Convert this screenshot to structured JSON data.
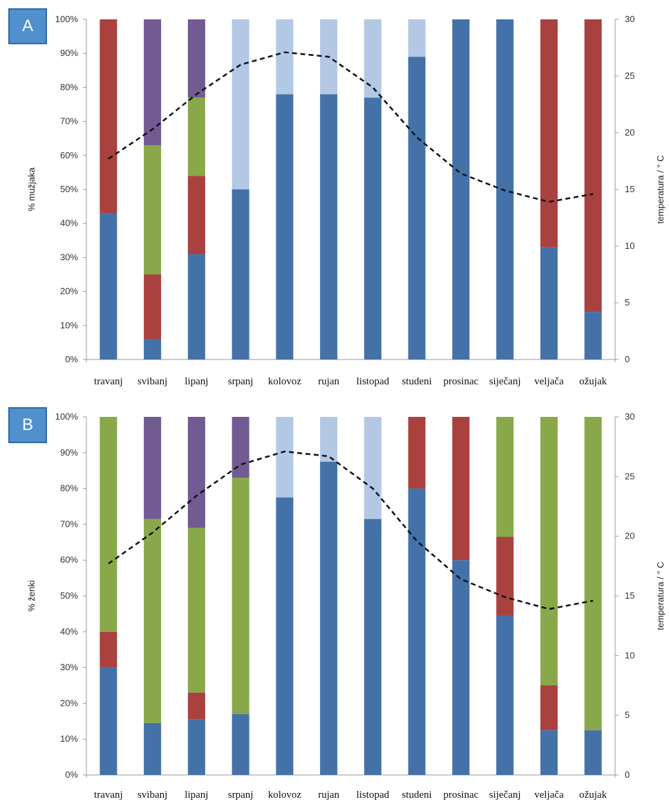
{
  "colors": {
    "blue": "#4472a8",
    "red": "#a9413f",
    "green": "#88a84a",
    "purple": "#725a93",
    "lightblue": "#b3c8e4",
    "line": "#111111",
    "badge": "#4f90cd"
  },
  "chart_data": [
    {
      "panel": "A",
      "type": "bar",
      "stacked": true,
      "categories": [
        "travanj",
        "svibanj",
        "lipanj",
        "srpanj",
        "kolovoz",
        "rujan",
        "listopad",
        "studeni",
        "prosinac",
        "siječanj",
        "veljača",
        "ožujak"
      ],
      "ylabel": "% mužjaka",
      "y2label": "temperatura / ° C",
      "ylim": [
        0,
        100
      ],
      "y2lim": [
        0,
        30
      ],
      "yticks": [
        "0%",
        "10%",
        "20%",
        "30%",
        "40%",
        "50%",
        "60%",
        "70%",
        "80%",
        "90%",
        "100%"
      ],
      "y2ticks": [
        "0",
        "5",
        "10",
        "15",
        "20",
        "25",
        "30"
      ],
      "series": [
        {
          "color": "blue",
          "values": [
            43,
            6,
            31,
            50,
            78,
            78,
            77,
            89,
            100,
            100,
            33,
            14
          ]
        },
        {
          "color": "red",
          "values": [
            57,
            19,
            23,
            0,
            0,
            0,
            0,
            0,
            0,
            0,
            67,
            86
          ]
        },
        {
          "color": "green",
          "values": [
            0,
            38,
            23,
            0,
            0,
            0,
            0,
            0,
            0,
            0,
            0,
            0
          ]
        },
        {
          "color": "purple",
          "values": [
            0,
            37,
            23,
            0,
            0,
            0,
            0,
            0,
            0,
            0,
            0,
            0
          ]
        },
        {
          "color": "lightblue",
          "values": [
            0,
            0,
            0,
            50,
            22,
            22,
            23,
            11,
            0,
            0,
            0,
            0
          ]
        }
      ],
      "line": {
        "axis": "y2",
        "style": "dashed",
        "values": [
          17.7,
          20.3,
          23.4,
          26.0,
          27.1,
          26.7,
          24.0,
          19.6,
          16.4,
          14.9,
          13.9,
          14.6
        ]
      }
    },
    {
      "panel": "B",
      "type": "bar",
      "stacked": true,
      "categories": [
        "travanj",
        "svibanj",
        "lipanj",
        "srpanj",
        "kolovoz",
        "rujan",
        "listopad",
        "studeni",
        "prosinac",
        "siječanj",
        "veljača",
        "ožujak"
      ],
      "ylabel": "% ženki",
      "y2label": "temperatura / ° C",
      "ylim": [
        0,
        100
      ],
      "y2lim": [
        0,
        30
      ],
      "yticks": [
        "0%",
        "10%",
        "20%",
        "30%",
        "40%",
        "50%",
        "60%",
        "70%",
        "80%",
        "90%",
        "100%"
      ],
      "y2ticks": [
        "0",
        "5",
        "10",
        "15",
        "20",
        "25",
        "30"
      ],
      "series": [
        {
          "color": "blue",
          "values": [
            30,
            14.5,
            15.5,
            17,
            77.5,
            87.5,
            71.5,
            80,
            60,
            44.5,
            12.5,
            12.5
          ]
        },
        {
          "color": "red",
          "values": [
            10,
            0,
            7.5,
            0,
            0,
            0,
            0,
            20,
            40,
            22,
            12.5,
            0
          ]
        },
        {
          "color": "green",
          "values": [
            60,
            57,
            46,
            66,
            0,
            0,
            0,
            0,
            0,
            33.5,
            75,
            87.5
          ]
        },
        {
          "color": "purple",
          "values": [
            0,
            28.5,
            31,
            17,
            0,
            0,
            0,
            0,
            0,
            0,
            0,
            0
          ]
        },
        {
          "color": "lightblue",
          "values": [
            0,
            0,
            0,
            0,
            22.5,
            12.5,
            28.5,
            0,
            0,
            0,
            0,
            0
          ]
        }
      ],
      "line": {
        "axis": "y2",
        "style": "dashed",
        "values": [
          17.7,
          20.3,
          23.4,
          26.0,
          27.1,
          26.7,
          24.0,
          19.6,
          16.4,
          14.9,
          13.9,
          14.6
        ]
      }
    }
  ],
  "badges": {
    "a": "A",
    "b": "B"
  }
}
